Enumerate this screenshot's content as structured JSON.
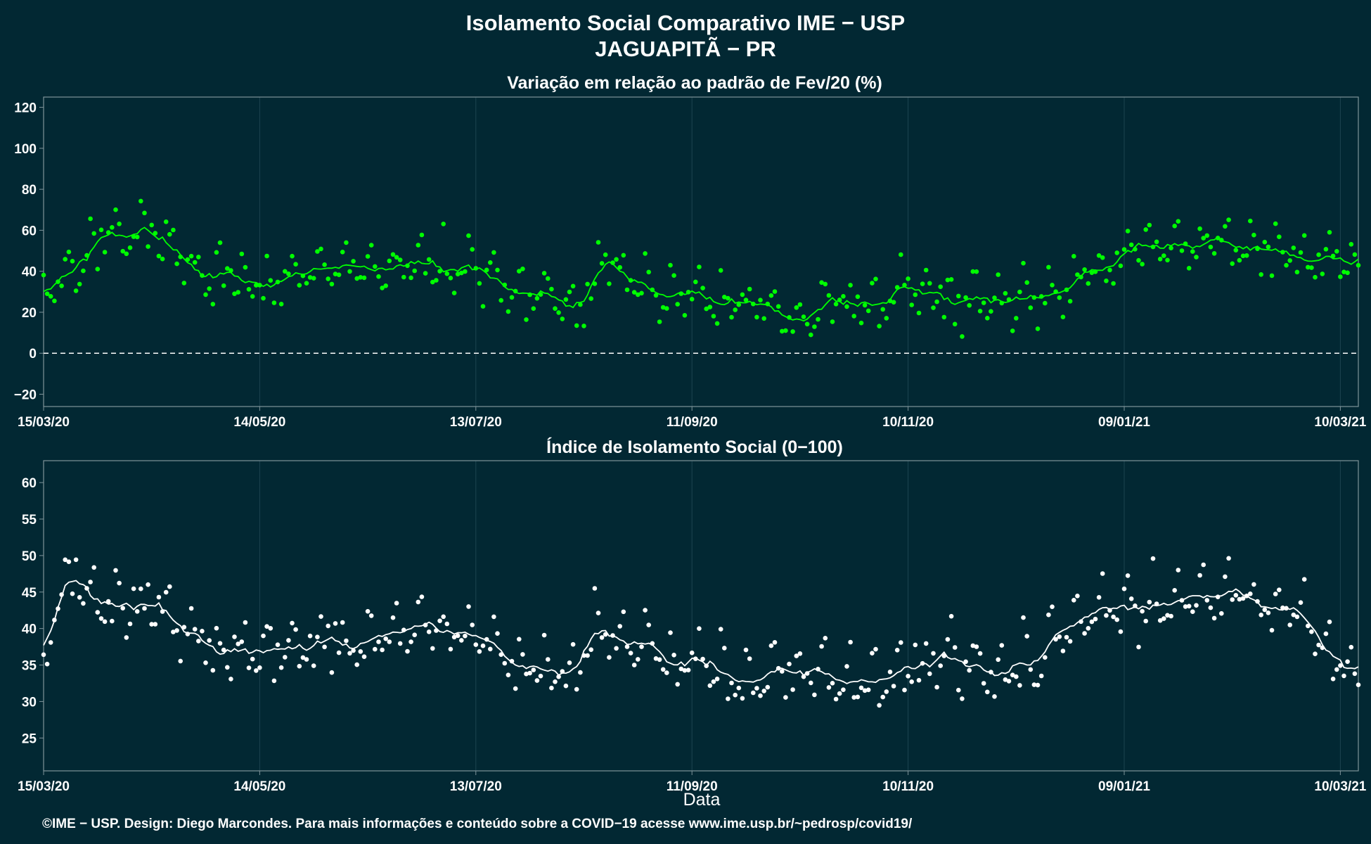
{
  "title": "Isolamento Social Comparativo IME − USP",
  "subtitle": "JAGUAPITÃ − PR",
  "xlabel": "Data",
  "footer": "©IME − USP. Design: Diego Marcondes. Para mais informações e conteúdo sobre a COVID−19 acesse www.ime.usp.br/~pedrosp/covid19/",
  "colors": {
    "background": "#022833",
    "panel_border": "#7f949a",
    "grid": "#1d4450",
    "positive": "#00ff00",
    "negative": "#ff0000",
    "index_points": "#ffffff",
    "text": "#ffffff"
  },
  "x_axis": {
    "start_date": "2020-03-15",
    "end_date": "2021-03-15",
    "ticks": [
      "15/03/20",
      "14/05/20",
      "13/07/20",
      "11/09/20",
      "10/11/20",
      "09/01/21",
      "10/03/21"
    ]
  },
  "chart_data": [
    {
      "type": "scatter",
      "title": "Variação em relação ao padrão de Fev/20 (%)",
      "ylim": [
        -26,
        125
      ],
      "yticks": [
        -20,
        0,
        20,
        40,
        60,
        80,
        100,
        120
      ],
      "reference_line": 0,
      "grid": true,
      "series": [
        {
          "x": [
            "2020-03-15",
            "2020-04-01",
            "2020-04-15",
            "2020-05-01",
            "2020-05-15",
            "2020-06-01",
            "2020-06-15",
            "2020-07-01",
            "2020-07-15",
            "2020-08-01",
            "2020-08-10",
            "2020-08-20",
            "2020-09-01",
            "2020-09-15",
            "2020-10-01",
            "2020-10-10",
            "2020-10-20",
            "2020-11-01",
            "2020-11-10",
            "2020-11-20",
            "2020-12-01",
            "2020-12-15",
            "2021-01-01",
            "2021-01-15",
            "2021-02-01",
            "2021-02-15",
            "2021-03-01",
            "2021-03-15"
          ],
          "values": [
            28,
            55,
            57,
            33,
            30,
            38,
            38,
            41,
            38,
            22,
            19,
            43,
            27,
            25,
            20,
            15,
            22,
            20,
            27,
            25,
            21,
            22,
            40,
            48,
            52,
            48,
            42,
            46
          ]
        }
      ]
    },
    {
      "type": "scatter",
      "title": "Índice de Isolamento Social (0−100)",
      "ylim": [
        20.5,
        63
      ],
      "yticks": [
        25,
        30,
        35,
        40,
        45,
        50,
        55,
        60
      ],
      "grid": true,
      "series": [
        {
          "x": [
            "2020-03-15",
            "2020-03-22",
            "2020-04-01",
            "2020-04-15",
            "2020-05-01",
            "2020-05-15",
            "2020-06-01",
            "2020-06-15",
            "2020-07-01",
            "2020-07-15",
            "2020-08-01",
            "2020-08-10",
            "2020-08-20",
            "2020-09-01",
            "2020-09-15",
            "2020-10-01",
            "2020-10-10",
            "2020-10-20",
            "2020-11-01",
            "2020-11-10",
            "2020-11-20",
            "2020-12-01",
            "2020-12-15",
            "2021-01-01",
            "2021-01-15",
            "2021-02-01",
            "2021-02-15",
            "2021-03-01",
            "2021-03-15"
          ],
          "values": [
            35.5,
            47,
            43,
            43,
            36,
            36.5,
            37,
            37,
            39,
            38,
            33,
            34,
            40,
            35,
            34,
            32,
            33,
            33,
            31,
            35,
            35,
            33,
            35,
            42,
            42,
            43.5,
            43,
            40,
            31
          ]
        }
      ]
    }
  ]
}
